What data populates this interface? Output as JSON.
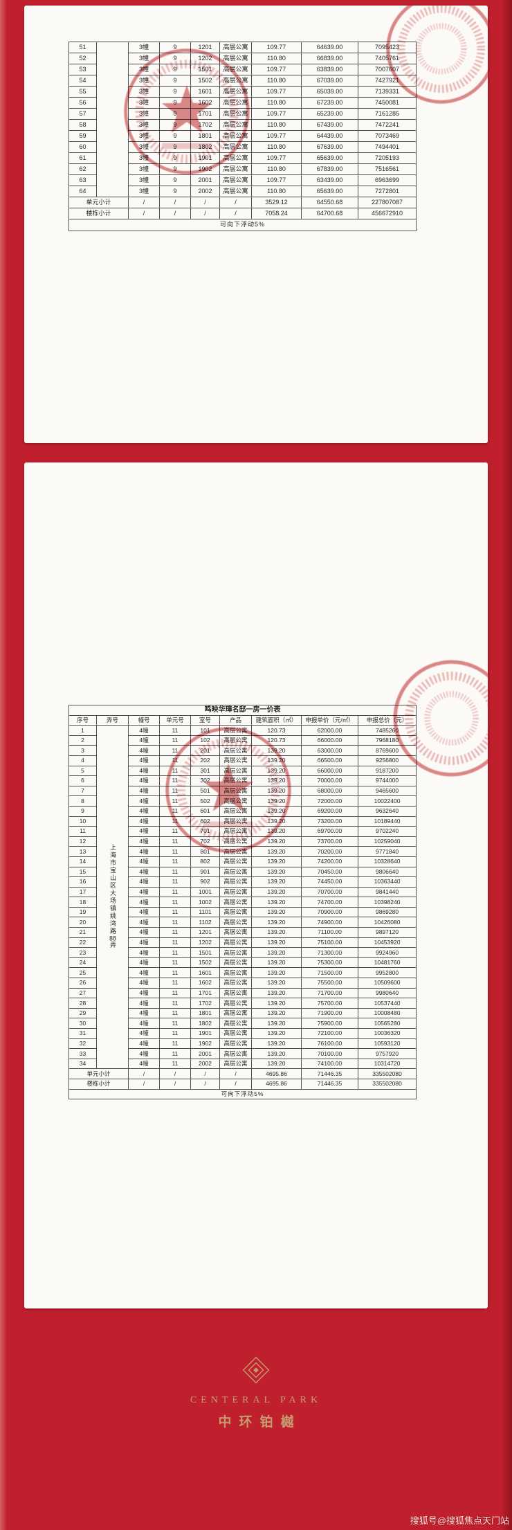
{
  "page1": {
    "table": {
      "rows": [
        {
          "no": "51",
          "building": "3幢",
          "unit": "9",
          "room": "1201",
          "product": "高层公寓",
          "area": "109.77",
          "unit_price": "64639.00",
          "total_price": "7095423"
        },
        {
          "no": "52",
          "building": "3幢",
          "unit": "9",
          "room": "1202",
          "product": "高层公寓",
          "area": "110.80",
          "unit_price": "66839.00",
          "total_price": "7405761"
        },
        {
          "no": "53",
          "building": "3幢",
          "unit": "9",
          "room": "1501",
          "product": "高层公寓",
          "area": "109.77",
          "unit_price": "63839.00",
          "total_price": "7007607"
        },
        {
          "no": "54",
          "building": "3幢",
          "unit": "9",
          "room": "1502",
          "product": "高层公寓",
          "area": "110.80",
          "unit_price": "67039.00",
          "total_price": "7427921"
        },
        {
          "no": "55",
          "building": "3幢",
          "unit": "9",
          "room": "1601",
          "product": "高层公寓",
          "area": "109.77",
          "unit_price": "65039.00",
          "total_price": "7139331"
        },
        {
          "no": "56",
          "building": "3幢",
          "unit": "9",
          "room": "1602",
          "product": "高层公寓",
          "area": "110.80",
          "unit_price": "67239.00",
          "total_price": "7450081"
        },
        {
          "no": "57",
          "building": "3幢",
          "unit": "9",
          "room": "1701",
          "product": "高层公寓",
          "area": "109.77",
          "unit_price": "65239.00",
          "total_price": "7161285"
        },
        {
          "no": "58",
          "building": "3幢",
          "unit": "9",
          "room": "1702",
          "product": "高层公寓",
          "area": "110.80",
          "unit_price": "67439.00",
          "total_price": "7472241"
        },
        {
          "no": "59",
          "building": "3幢",
          "unit": "9",
          "room": "1801",
          "product": "高层公寓",
          "area": "109.77",
          "unit_price": "64439.00",
          "total_price": "7073469"
        },
        {
          "no": "60",
          "building": "3幢",
          "unit": "9",
          "room": "1802",
          "product": "高层公寓",
          "area": "110.80",
          "unit_price": "67639.00",
          "total_price": "7494401"
        },
        {
          "no": "61",
          "building": "3幢",
          "unit": "9",
          "room": "1901",
          "product": "高层公寓",
          "area": "109.77",
          "unit_price": "65639.00",
          "total_price": "7205193"
        },
        {
          "no": "62",
          "building": "3幢",
          "unit": "9",
          "room": "1902",
          "product": "高层公寓",
          "area": "110.80",
          "unit_price": "67839.00",
          "total_price": "7516561"
        },
        {
          "no": "63",
          "building": "3幢",
          "unit": "9",
          "room": "2001",
          "product": "高层公寓",
          "area": "109.77",
          "unit_price": "63439.00",
          "total_price": "6963699"
        },
        {
          "no": "64",
          "building": "3幢",
          "unit": "9",
          "room": "2002",
          "product": "高层公寓",
          "area": "110.80",
          "unit_price": "65639.00",
          "total_price": "7272801"
        }
      ],
      "unit_subtotal": {
        "label": "单元小计",
        "slash": "/",
        "area": "3529.12",
        "unit_price": "64550.68",
        "total_price": "227807087"
      },
      "building_subtotal": {
        "label": "楼栋小计",
        "slash": "/",
        "area": "7058.24",
        "unit_price": "64700.68",
        "total_price": "456672910"
      },
      "note": "可向下浮动5%"
    }
  },
  "page2": {
    "table": {
      "title": "鸣映华璋名邸一房一价表",
      "headers": [
        "序号",
        "弄号",
        "幢号",
        "单元号",
        "室号",
        "产品",
        "建筑面积（㎡）",
        "申报单价（元/㎡）",
        "申报总价（元）"
      ],
      "lane_address": "上海市宝山区大场镇姚湾路88弄",
      "rows": [
        {
          "no": "1",
          "building": "4幢",
          "unit": "11",
          "room": "101",
          "product": "高层公寓",
          "area": "120.73",
          "unit_price": "62000.00",
          "total_price": "7485260"
        },
        {
          "no": "2",
          "building": "4幢",
          "unit": "11",
          "room": "102",
          "product": "高层公寓",
          "area": "120.73",
          "unit_price": "66000.00",
          "total_price": "7968180"
        },
        {
          "no": "3",
          "building": "4幢",
          "unit": "11",
          "room": "201",
          "product": "高层公寓",
          "area": "139.20",
          "unit_price": "63000.00",
          "total_price": "8769600"
        },
        {
          "no": "4",
          "building": "4幢",
          "unit": "11",
          "room": "202",
          "product": "高层公寓",
          "area": "139.20",
          "unit_price": "66500.00",
          "total_price": "9256800"
        },
        {
          "no": "5",
          "building": "4幢",
          "unit": "11",
          "room": "301",
          "product": "高层公寓",
          "area": "139.20",
          "unit_price": "66000.00",
          "total_price": "9187200"
        },
        {
          "no": "6",
          "building": "4幢",
          "unit": "11",
          "room": "302",
          "product": "高层公寓",
          "area": "139.20",
          "unit_price": "70000.00",
          "total_price": "9744000"
        },
        {
          "no": "7",
          "building": "4幢",
          "unit": "11",
          "room": "501",
          "product": "高层公寓",
          "area": "139.20",
          "unit_price": "68000.00",
          "total_price": "9465600"
        },
        {
          "no": "8",
          "building": "4幢",
          "unit": "11",
          "room": "502",
          "product": "高层公寓",
          "area": "139.20",
          "unit_price": "72000.00",
          "total_price": "10022400"
        },
        {
          "no": "9",
          "building": "4幢",
          "unit": "11",
          "room": "601",
          "product": "高层公寓",
          "area": "139.20",
          "unit_price": "69200.00",
          "total_price": "9632640"
        },
        {
          "no": "10",
          "building": "4幢",
          "unit": "11",
          "room": "602",
          "product": "高层公寓",
          "area": "139.20",
          "unit_price": "73200.00",
          "total_price": "10189440"
        },
        {
          "no": "11",
          "building": "4幢",
          "unit": "11",
          "room": "701",
          "product": "高层公寓",
          "area": "139.20",
          "unit_price": "69700.00",
          "total_price": "9702240"
        },
        {
          "no": "12",
          "building": "4幢",
          "unit": "11",
          "room": "702",
          "product": "高层公寓",
          "area": "139.20",
          "unit_price": "73700.00",
          "total_price": "10259040"
        },
        {
          "no": "13",
          "building": "4幢",
          "unit": "11",
          "room": "801",
          "product": "高层公寓",
          "area": "139.20",
          "unit_price": "70200.00",
          "total_price": "9771840"
        },
        {
          "no": "14",
          "building": "4幢",
          "unit": "11",
          "room": "802",
          "product": "高层公寓",
          "area": "139.20",
          "unit_price": "74200.00",
          "total_price": "10328640"
        },
        {
          "no": "15",
          "building": "4幢",
          "unit": "11",
          "room": "901",
          "product": "高层公寓",
          "area": "139.20",
          "unit_price": "70450.00",
          "total_price": "9806640"
        },
        {
          "no": "16",
          "building": "4幢",
          "unit": "11",
          "room": "902",
          "product": "高层公寓",
          "area": "139.20",
          "unit_price": "74450.00",
          "total_price": "10363440"
        },
        {
          "no": "17",
          "building": "4幢",
          "unit": "11",
          "room": "1001",
          "product": "高层公寓",
          "area": "139.20",
          "unit_price": "70700.00",
          "total_price": "9841440"
        },
        {
          "no": "18",
          "building": "4幢",
          "unit": "11",
          "room": "1002",
          "product": "高层公寓",
          "area": "139.20",
          "unit_price": "74700.00",
          "total_price": "10398240"
        },
        {
          "no": "19",
          "building": "4幢",
          "unit": "11",
          "room": "1101",
          "product": "高层公寓",
          "area": "139.20",
          "unit_price": "70900.00",
          "total_price": "9869280"
        },
        {
          "no": "20",
          "building": "4幢",
          "unit": "11",
          "room": "1102",
          "product": "高层公寓",
          "area": "139.20",
          "unit_price": "74900.00",
          "total_price": "10426080"
        },
        {
          "no": "21",
          "building": "4幢",
          "unit": "11",
          "room": "1201",
          "product": "高层公寓",
          "area": "139.20",
          "unit_price": "71100.00",
          "total_price": "9897120"
        },
        {
          "no": "22",
          "building": "4幢",
          "unit": "11",
          "room": "1202",
          "product": "高层公寓",
          "area": "139.20",
          "unit_price": "75100.00",
          "total_price": "10453920"
        },
        {
          "no": "23",
          "building": "4幢",
          "unit": "11",
          "room": "1501",
          "product": "高层公寓",
          "area": "139.20",
          "unit_price": "71300.00",
          "total_price": "9924960"
        },
        {
          "no": "24",
          "building": "4幢",
          "unit": "11",
          "room": "1502",
          "product": "高层公寓",
          "area": "139.20",
          "unit_price": "75300.00",
          "total_price": "10481760"
        },
        {
          "no": "25",
          "building": "4幢",
          "unit": "11",
          "room": "1601",
          "product": "高层公寓",
          "area": "139.20",
          "unit_price": "71500.00",
          "total_price": "9952800"
        },
        {
          "no": "26",
          "building": "4幢",
          "unit": "11",
          "room": "1602",
          "product": "高层公寓",
          "area": "139.20",
          "unit_price": "75500.00",
          "total_price": "10509600"
        },
        {
          "no": "27",
          "building": "4幢",
          "unit": "11",
          "room": "1701",
          "product": "高层公寓",
          "area": "139.20",
          "unit_price": "71700.00",
          "total_price": "9980640"
        },
        {
          "no": "28",
          "building": "4幢",
          "unit": "11",
          "room": "1702",
          "product": "高层公寓",
          "area": "139.20",
          "unit_price": "75700.00",
          "total_price": "10537440"
        },
        {
          "no": "29",
          "building": "4幢",
          "unit": "11",
          "room": "1801",
          "product": "高层公寓",
          "area": "139.20",
          "unit_price": "71900.00",
          "total_price": "10008480"
        },
        {
          "no": "30",
          "building": "4幢",
          "unit": "11",
          "room": "1802",
          "product": "高层公寓",
          "area": "139.20",
          "unit_price": "75900.00",
          "total_price": "10565280"
        },
        {
          "no": "31",
          "building": "4幢",
          "unit": "11",
          "room": "1901",
          "product": "高层公寓",
          "area": "139.20",
          "unit_price": "72100.00",
          "total_price": "10036320"
        },
        {
          "no": "32",
          "building": "4幢",
          "unit": "11",
          "room": "1902",
          "product": "高层公寓",
          "area": "139.20",
          "unit_price": "76100.00",
          "total_price": "10593120"
        },
        {
          "no": "33",
          "building": "4幢",
          "unit": "11",
          "room": "2001",
          "product": "高层公寓",
          "area": "139.20",
          "unit_price": "70100.00",
          "total_price": "9757920"
        },
        {
          "no": "34",
          "building": "4幢",
          "unit": "11",
          "room": "2002",
          "product": "高层公寓",
          "area": "139.20",
          "unit_price": "74100.00",
          "total_price": "10314720"
        }
      ],
      "unit_subtotal": {
        "label": "单元小计",
        "slash": "/",
        "area": "4695.86",
        "unit_price": "71446.35",
        "total_price": "335502080"
      },
      "building_subtotal": {
        "label": "楼栋小计",
        "slash": "/",
        "area": "4695.86",
        "unit_price": "71446.35",
        "total_price": "335502080"
      },
      "note": "可向下浮动5%"
    }
  },
  "stamp_color": "#c23434",
  "footer": {
    "logo_en": "CENTERAL PARK",
    "logo_cn": "中环铂樾"
  },
  "watermark": "搜狐号@搜狐焦点天门站"
}
